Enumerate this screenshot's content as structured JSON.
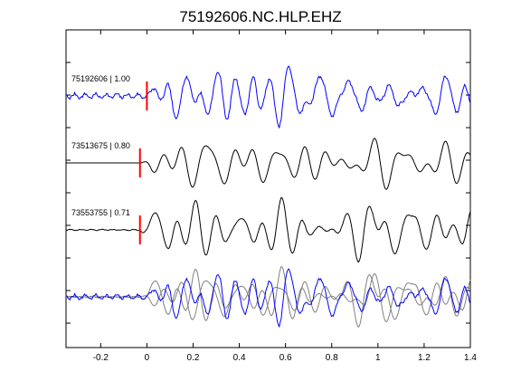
{
  "chart_data": {
    "type": "line",
    "title": "75192606.NC.HLP.EHZ",
    "xlabel": "",
    "ylabel": "",
    "xlim": [
      -0.35,
      1.4
    ],
    "x_ticks": [
      -0.2,
      0,
      0.2,
      0.4,
      0.6,
      0.8,
      1,
      1.2,
      1.4
    ],
    "x_tick_labels": [
      "-0.2",
      "0",
      "0.2",
      "0.4",
      "0.6",
      "0.8",
      "1",
      "1.2",
      "1.4"
    ],
    "grid": false,
    "colors": {
      "reference": "#0000ff",
      "similar": "#000000",
      "overlay_gray": "#808080",
      "pick": "#ff0000",
      "axis": "#000000"
    },
    "traces": [
      {
        "label": "75192606 | 1.00",
        "color": "#0000ff",
        "pick_time": 0.0,
        "seed": 7,
        "noise": 0.12,
        "amplitude": 1.0
      },
      {
        "label": "73513675 | 0.80",
        "color": "#000000",
        "pick_time": -0.03,
        "seed": 23,
        "noise": 0.0,
        "amplitude": 1.0
      },
      {
        "label": "73553755 | 0.71",
        "color": "#000000",
        "pick_time": -0.03,
        "seed": 41,
        "noise": 0.03,
        "amplitude": 0.9
      }
    ],
    "overlay": {
      "series": [
        {
          "trace": 0,
          "color": "#0000ff"
        },
        {
          "trace": 1,
          "color": "#808080"
        },
        {
          "trace": 2,
          "color": "#808080"
        }
      ]
    }
  }
}
